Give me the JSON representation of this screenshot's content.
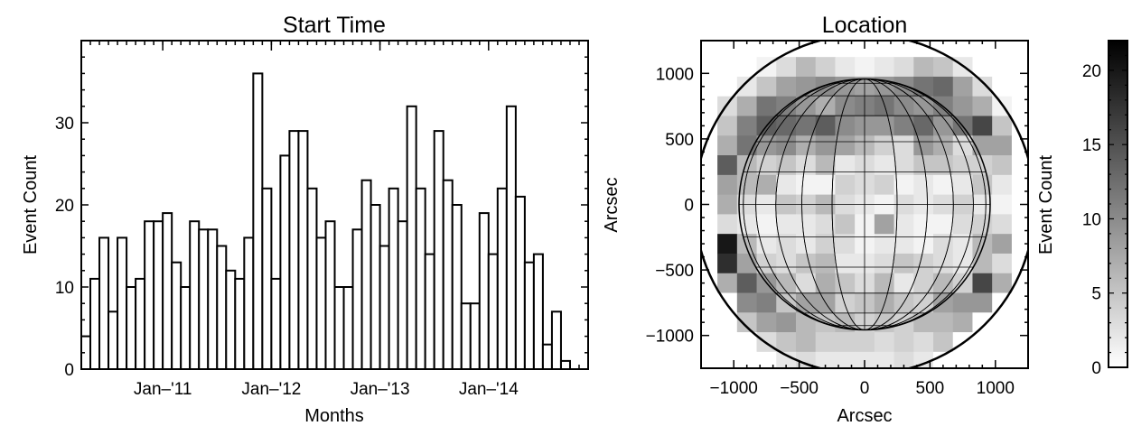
{
  "chart_data": [
    {
      "type": "bar",
      "title": "Start Time",
      "xlabel": "Months",
      "ylabel": "Event Count",
      "ylim": [
        0,
        40
      ],
      "yticks": [
        0,
        10,
        20,
        30
      ],
      "xtick_labels": [
        {
          "label": "Jan–'11",
          "month_index": 9
        },
        {
          "label": "Jan–'12",
          "month_index": 21
        },
        {
          "label": "Jan–'13",
          "month_index": 33
        },
        {
          "label": "Jan–'14",
          "month_index": 45
        }
      ],
      "values": [
        4,
        11,
        16,
        7,
        16,
        10,
        11,
        18,
        18,
        19,
        13,
        10,
        18,
        17,
        17,
        15,
        12,
        11,
        16,
        36,
        22,
        11,
        26,
        29,
        29,
        22,
        16,
        18,
        10,
        10,
        17,
        23,
        20,
        15,
        22,
        18,
        32,
        22,
        14,
        29,
        23,
        20,
        8,
        8,
        19,
        14,
        22,
        32,
        21,
        13,
        14,
        3,
        7,
        1
      ],
      "grid": false
    },
    {
      "type": "heatmap",
      "title": "Location",
      "xlabel": "Arcsec",
      "ylabel": "Arcsec",
      "xlim": [
        -1250,
        1250
      ],
      "ylim": [
        -1250,
        1250
      ],
      "xticks": [
        -1000,
        -500,
        0,
        500,
        1000
      ],
      "yticks": [
        -1000,
        -500,
        0,
        500,
        1000
      ],
      "x": [
        -1050,
        -900,
        -750,
        -600,
        -450,
        -300,
        -150,
        0,
        150,
        300,
        450,
        600,
        750,
        900,
        1050,
        1200
      ],
      "y": [
        1050,
        900,
        750,
        600,
        450,
        300,
        150,
        0,
        -150,
        -300,
        -450,
        -600,
        -750,
        -900,
        -1050,
        -1200
      ],
      "values": [
        [
          0,
          0,
          1,
          3,
          6,
          4,
          2,
          1,
          2,
          3,
          6,
          5,
          2,
          0,
          0,
          0
        ],
        [
          0,
          2,
          5,
          8,
          9,
          10,
          9,
          8,
          9,
          10,
          12,
          13,
          8,
          3,
          0,
          0
        ],
        [
          3,
          7,
          12,
          11,
          9,
          7,
          10,
          11,
          12,
          10,
          9,
          11,
          9,
          7,
          1,
          0
        ],
        [
          5,
          11,
          14,
          13,
          12,
          14,
          10,
          9,
          9,
          11,
          13,
          9,
          12,
          16,
          5,
          0
        ],
        [
          7,
          12,
          9,
          10,
          7,
          9,
          8,
          6,
          4,
          3,
          9,
          7,
          3,
          8,
          8,
          0
        ],
        [
          14,
          6,
          4,
          5,
          3,
          6,
          2,
          3,
          2,
          3,
          5,
          5,
          4,
          4,
          5,
          0
        ],
        [
          8,
          6,
          7,
          2,
          1,
          1,
          4,
          3,
          4,
          1,
          2,
          1,
          2,
          5,
          2,
          0
        ],
        [
          7,
          3,
          2,
          5,
          4,
          6,
          3,
          2,
          1,
          3,
          2,
          3,
          4,
          2,
          1,
          0
        ],
        [
          3,
          2,
          1,
          2,
          2,
          3,
          5,
          1,
          8,
          2,
          1,
          1,
          3,
          4,
          3,
          0
        ],
        [
          20,
          6,
          2,
          3,
          2,
          4,
          3,
          1,
          2,
          2,
          1,
          3,
          2,
          6,
          8,
          0
        ],
        [
          18,
          8,
          4,
          3,
          5,
          6,
          2,
          2,
          3,
          5,
          4,
          3,
          2,
          6,
          3,
          0
        ],
        [
          7,
          14,
          9,
          6,
          3,
          7,
          5,
          3,
          6,
          2,
          4,
          6,
          4,
          16,
          7,
          0
        ],
        [
          0,
          10,
          11,
          5,
          8,
          8,
          4,
          5,
          7,
          5,
          4,
          8,
          9,
          9,
          0,
          0
        ],
        [
          0,
          5,
          8,
          9,
          6,
          5,
          6,
          4,
          5,
          4,
          6,
          6,
          7,
          0,
          0,
          0
        ],
        [
          0,
          0,
          3,
          5,
          6,
          4,
          4,
          4,
          3,
          4,
          3,
          5,
          0,
          0,
          0,
          0
        ],
        [
          0,
          0,
          0,
          2,
          3,
          2,
          2,
          2,
          2,
          3,
          2,
          0,
          0,
          0,
          0,
          0
        ]
      ],
      "colorbar": {
        "label": "Event Count",
        "range": [
          0,
          22
        ],
        "ticks": [
          0,
          5,
          10,
          15,
          20
        ],
        "colormap": "white-to-black"
      },
      "overlay": "solar disk with latitude/longitude grid",
      "disk_radius_arcsec": 960,
      "limb_circle_radius_arcsec": 1300
    }
  ]
}
